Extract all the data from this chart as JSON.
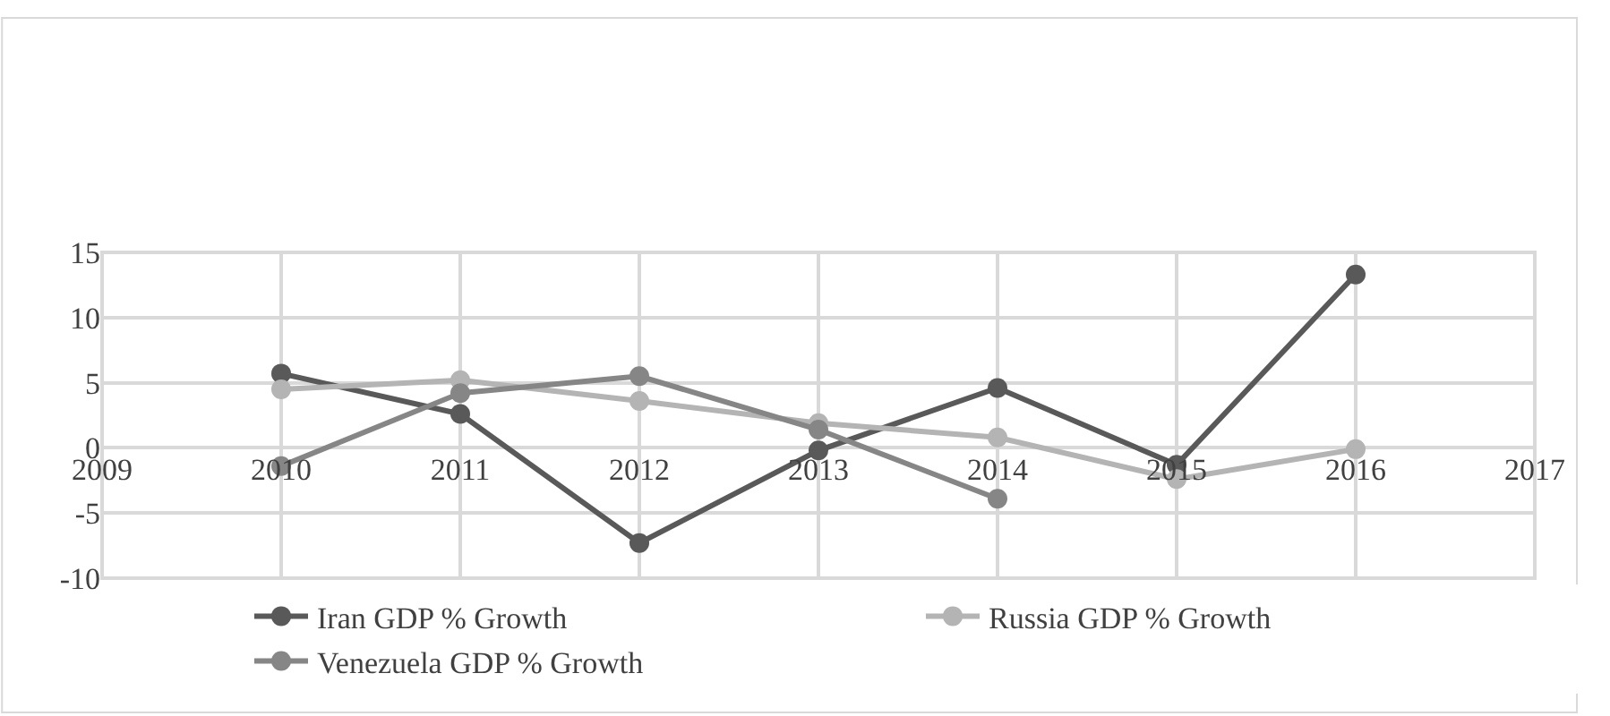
{
  "chart_data": {
    "type": "line",
    "x": [
      2010,
      2011,
      2012,
      2013,
      2014,
      2015,
      2016
    ],
    "series": [
      {
        "name": "Iran GDP % Growth",
        "color": "#595959",
        "values": [
          5.7,
          2.6,
          -7.3,
          -0.2,
          4.6,
          -1.3,
          13.3
        ]
      },
      {
        "name": "Russia GDP % Growth",
        "color": "#b4b4b4",
        "values": [
          4.5,
          5.2,
          3.6,
          1.9,
          0.8,
          -2.4,
          -0.1
        ]
      },
      {
        "name": "Venezuela GDP % Growth",
        "color": "#868686",
        "values": [
          -1.4,
          4.2,
          5.5,
          1.4,
          -3.9,
          null,
          null
        ]
      }
    ],
    "xlim": [
      2009,
      2017
    ],
    "xticks": [
      2009,
      2010,
      2011,
      2012,
      2013,
      2014,
      2015,
      2016,
      2017
    ],
    "ylim": [
      -10,
      15
    ],
    "yticks": [
      -10,
      -5,
      0,
      5,
      10,
      15
    ],
    "grid": true,
    "legend": "bottom",
    "marker": "circle",
    "line_style": "solid"
  }
}
